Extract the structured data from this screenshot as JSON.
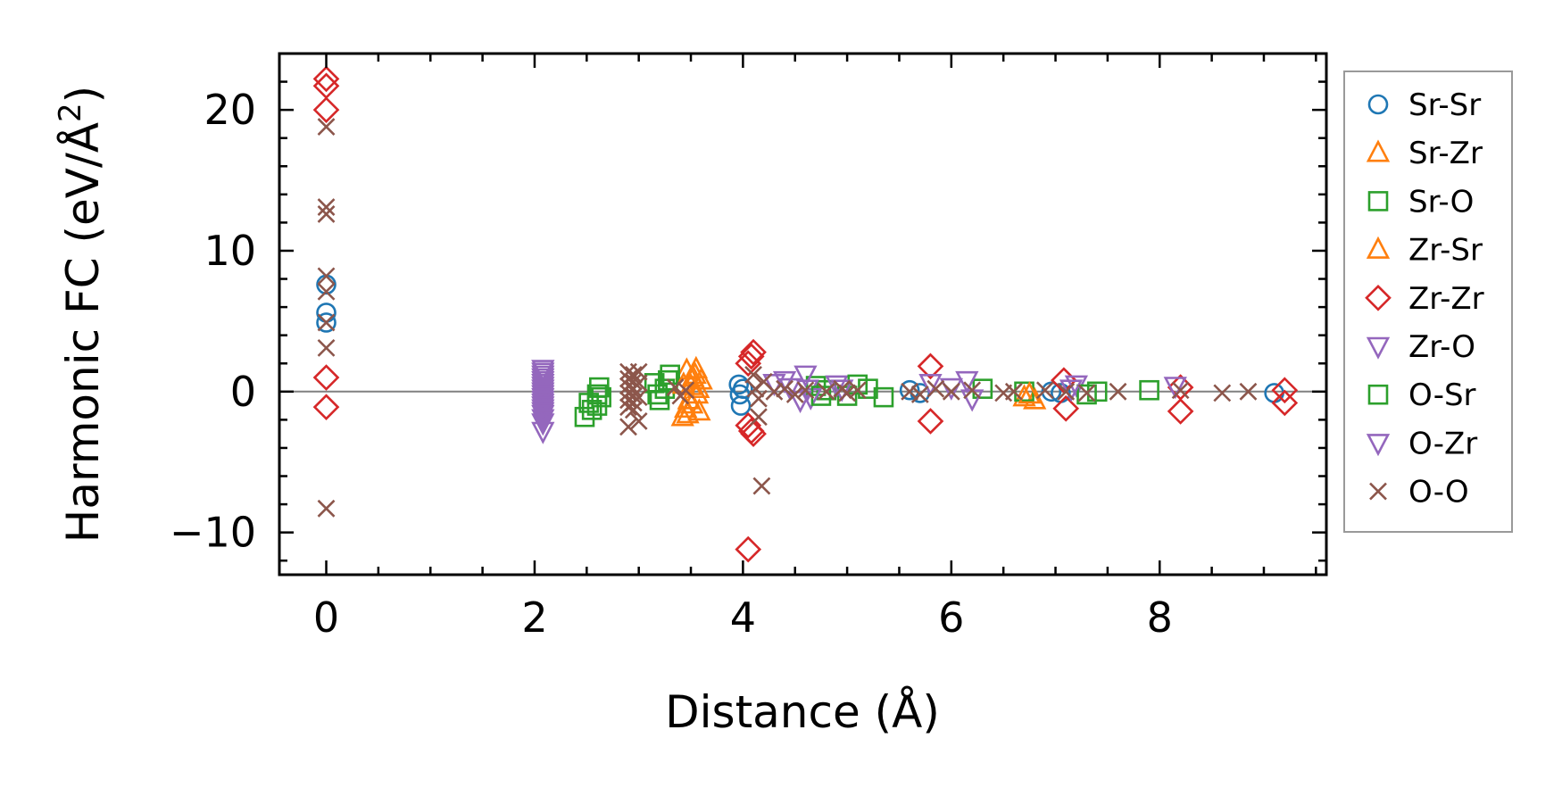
{
  "chart_data": {
    "type": "scatter",
    "xlabel": "Distance (Å)",
    "ylabel_main": "Harmonic FC (eV/Å",
    "ylabel_sup": "2",
    "ylabel_tail": ")",
    "xlim": [
      -0.45,
      9.6
    ],
    "ylim": [
      -13,
      24
    ],
    "xticks": [
      0,
      2,
      4,
      6,
      8
    ],
    "xtick_labels": [
      "0",
      "2",
      "4",
      "6",
      "8"
    ],
    "yticks": [
      -10,
      0,
      10,
      20
    ],
    "ytick_labels": [
      "−10",
      "0",
      "10",
      "20"
    ],
    "zero_line": true,
    "grid": false,
    "legend_position": "right-outside",
    "series": [
      {
        "name": "Sr-Sr",
        "marker": "circle",
        "color": "#1f77b4",
        "points": [
          [
            0,
            7.6
          ],
          [
            0,
            5.6
          ],
          [
            0,
            4.9
          ],
          [
            3.96,
            0.5
          ],
          [
            3.97,
            -0.2
          ],
          [
            3.98,
            -1.0
          ],
          [
            4.0,
            0.2
          ],
          [
            5.6,
            0.1
          ],
          [
            5.7,
            -0.1
          ],
          [
            6.96,
            0.0
          ],
          [
            7.05,
            -0.1
          ],
          [
            9.1,
            -0.1
          ]
        ]
      },
      {
        "name": "Sr-Zr",
        "marker": "triangle-up",
        "color": "#ff7f0e",
        "points": [
          [
            3.42,
            -1.8
          ],
          [
            3.45,
            -1.2
          ],
          [
            3.48,
            -0.6
          ],
          [
            3.5,
            0.4
          ],
          [
            3.52,
            1.0
          ],
          [
            3.55,
            1.6
          ],
          [
            3.58,
            -1.4
          ],
          [
            3.6,
            0.8
          ],
          [
            3.46,
            1.5
          ],
          [
            3.56,
            -0.2
          ],
          [
            6.7,
            -0.4
          ],
          [
            6.8,
            -0.6
          ]
        ]
      },
      {
        "name": "Sr-O",
        "marker": "square",
        "color": "#2ca02c",
        "points": [
          [
            2.48,
            -1.8
          ],
          [
            2.52,
            -0.8
          ],
          [
            2.6,
            -1.0
          ],
          [
            2.62,
            0.3
          ],
          [
            2.64,
            -0.4
          ],
          [
            3.15,
            0.6
          ],
          [
            3.2,
            -0.6
          ],
          [
            3.3,
            1.2
          ],
          [
            3.25,
            0.2
          ],
          [
            4.7,
            0.4
          ],
          [
            4.8,
            0.1
          ],
          [
            5.0,
            -0.3
          ],
          [
            5.2,
            0.2
          ],
          [
            5.35,
            -0.4
          ],
          [
            6.3,
            0.2
          ],
          [
            6.7,
            0.0
          ],
          [
            7.4,
            0.0
          ],
          [
            7.9,
            0.1
          ]
        ]
      },
      {
        "name": "Zr-Sr",
        "marker": "triangle-up",
        "color": "#ff7f0e",
        "points": [
          [
            3.43,
            0.5
          ],
          [
            3.47,
            -1.6
          ],
          [
            3.51,
            -0.9
          ],
          [
            3.54,
            1.2
          ],
          [
            3.57,
            0.2
          ],
          [
            6.75,
            -0.2
          ]
        ]
      },
      {
        "name": "Zr-Zr",
        "marker": "diamond",
        "color": "#d62728",
        "points": [
          [
            0,
            22.2
          ],
          [
            0,
            21.7
          ],
          [
            0,
            20.0
          ],
          [
            0,
            1.0
          ],
          [
            0,
            -1.1
          ],
          [
            4.05,
            2.0
          ],
          [
            4.08,
            2.5
          ],
          [
            4.1,
            2.8
          ],
          [
            4.05,
            -2.4
          ],
          [
            4.08,
            -2.8
          ],
          [
            4.1,
            -3.0
          ],
          [
            4.05,
            -11.2
          ],
          [
            5.8,
            1.8
          ],
          [
            5.8,
            -2.1
          ],
          [
            7.08,
            0.8
          ],
          [
            7.1,
            -1.2
          ],
          [
            8.2,
            0.3
          ],
          [
            8.2,
            -1.4
          ],
          [
            9.2,
            0.1
          ],
          [
            9.2,
            -0.8
          ]
        ]
      },
      {
        "name": "Zr-O",
        "marker": "triangle-down",
        "color": "#9467bd",
        "points": [
          [
            2.08,
            1.6
          ],
          [
            2.08,
            1.2
          ],
          [
            2.08,
            0.8
          ],
          [
            2.08,
            0.4
          ],
          [
            2.08,
            0.0
          ],
          [
            2.08,
            -0.4
          ],
          [
            2.08,
            -0.8
          ],
          [
            2.08,
            -1.2
          ],
          [
            2.08,
            -1.6
          ],
          [
            2.08,
            -2.2
          ],
          [
            2.08,
            -2.8
          ],
          [
            4.4,
            0.8
          ],
          [
            4.45,
            0.3
          ],
          [
            4.6,
            1.2
          ],
          [
            4.62,
            0.2
          ],
          [
            4.65,
            -0.4
          ],
          [
            4.9,
            0.5
          ],
          [
            5.8,
            0.6
          ],
          [
            6.15,
            0.8
          ],
          [
            6.2,
            -0.5
          ],
          [
            7.2,
            0.5
          ],
          [
            8.15,
            0.4
          ]
        ]
      },
      {
        "name": "O-Sr",
        "marker": "square",
        "color": "#2ca02c",
        "points": [
          [
            2.55,
            -1.3
          ],
          [
            2.6,
            -0.2
          ],
          [
            3.18,
            -0.2
          ],
          [
            3.28,
            0.8
          ],
          [
            4.75,
            -0.3
          ],
          [
            5.1,
            0.5
          ],
          [
            7.3,
            -0.2
          ]
        ]
      },
      {
        "name": "O-Zr",
        "marker": "triangle-down",
        "color": "#9467bd",
        "points": [
          [
            2.08,
            1.4
          ],
          [
            2.08,
            1.0
          ],
          [
            2.08,
            0.6
          ],
          [
            2.08,
            0.2
          ],
          [
            2.08,
            -0.2
          ],
          [
            2.08,
            -0.6
          ],
          [
            2.08,
            -1.0
          ],
          [
            2.08,
            -1.4
          ],
          [
            2.08,
            -1.9
          ],
          [
            4.3,
            0.6
          ],
          [
            4.55,
            -0.6
          ],
          [
            4.95,
            0.2
          ],
          [
            6.0,
            0.3
          ],
          [
            7.15,
            0.2
          ]
        ]
      },
      {
        "name": "O-O",
        "marker": "x",
        "color": "#8c564b",
        "points": [
          [
            0,
            18.8
          ],
          [
            0,
            13.1
          ],
          [
            0,
            12.6
          ],
          [
            0,
            8.2
          ],
          [
            0,
            7.1
          ],
          [
            0,
            4.9
          ],
          [
            0,
            3.1
          ],
          [
            0,
            -8.3
          ],
          [
            2.9,
            1.4
          ],
          [
            2.9,
            0.9
          ],
          [
            2.9,
            0.4
          ],
          [
            2.9,
            -0.1
          ],
          [
            2.9,
            -0.6
          ],
          [
            2.9,
            -1.1
          ],
          [
            2.9,
            -2.5
          ],
          [
            2.95,
            1.2
          ],
          [
            2.95,
            0.7
          ],
          [
            2.95,
            0.2
          ],
          [
            2.95,
            -0.3
          ],
          [
            2.95,
            -0.8
          ],
          [
            2.95,
            -1.3
          ],
          [
            3.0,
            1.4
          ],
          [
            3.0,
            0.6
          ],
          [
            3.0,
            -0.4
          ],
          [
            3.0,
            -2.1
          ],
          [
            3.35,
            0.3
          ],
          [
            3.4,
            -0.3
          ],
          [
            3.45,
            0.1
          ],
          [
            4.1,
            1.2
          ],
          [
            4.12,
            0.2
          ],
          [
            4.15,
            -0.5
          ],
          [
            4.15,
            -1.8
          ],
          [
            4.18,
            -6.7
          ],
          [
            4.2,
            0.7
          ],
          [
            4.3,
            0.0
          ],
          [
            4.4,
            0.2
          ],
          [
            4.5,
            -0.2
          ],
          [
            4.6,
            0.1
          ],
          [
            4.8,
            0.0
          ],
          [
            4.95,
            0.2
          ],
          [
            5.0,
            -0.1
          ],
          [
            5.1,
            0.1
          ],
          [
            5.6,
            0.0
          ],
          [
            5.7,
            -0.2
          ],
          [
            5.85,
            0.2
          ],
          [
            6.0,
            0.0
          ],
          [
            6.2,
            0.1
          ],
          [
            6.5,
            -0.1
          ],
          [
            6.6,
            0.0
          ],
          [
            6.9,
            0.1
          ],
          [
            7.1,
            0.0
          ],
          [
            7.3,
            -0.1
          ],
          [
            7.6,
            0.0
          ],
          [
            8.2,
            0.1
          ],
          [
            8.6,
            -0.1
          ],
          [
            8.85,
            0.0
          ]
        ]
      }
    ]
  }
}
